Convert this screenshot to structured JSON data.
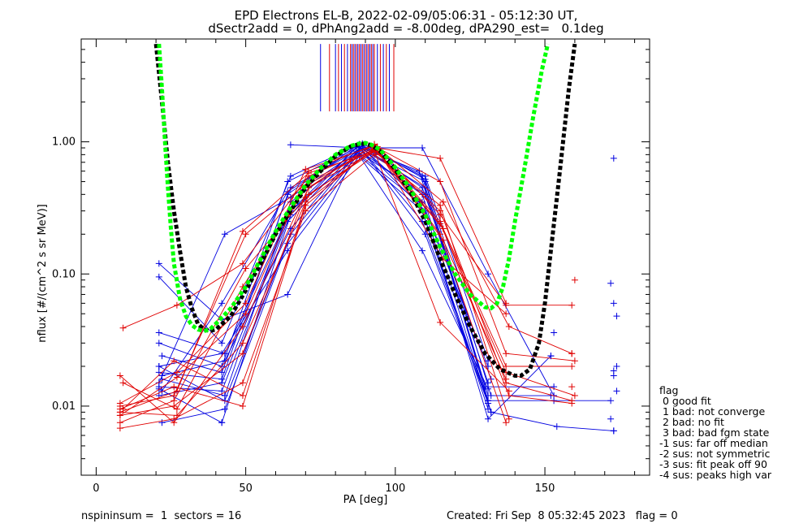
{
  "title_line1": "EPD Electrons EL-B, 2022-02-09/05:06:31 - 05:12:30 UT,",
  "title_line2": "dSectr2add = 0, dPhAng2add = -8.00deg, dPA290_est=   0.1deg",
  "footer_left": "nspininsum =  1  sectors = 16",
  "footer_right": "Created: Fri Sep  8 05:32:45 2023   flag = 0",
  "legend": {
    "title": "flag",
    "items": [
      " 0 good fit",
      " 1 bad: not converge",
      " 2 bad: no fit",
      " 3 bad: bad fgm state",
      "-1 sus: far off median",
      "-2 sus: not symmetric",
      "-3 sus: fit peak off 90",
      "-4 sus: peaks high var"
    ]
  },
  "colors": {
    "red": "#e00000",
    "blue": "#0000e0",
    "black": "#000000",
    "green": "#00ff00"
  },
  "chart_data": {
    "type": "line",
    "xlabel": "PA [deg]",
    "ylabel": "nflux [#/(cm^2 s sr MeV)]",
    "xlim": [
      -5,
      185
    ],
    "ylim": [
      0.003,
      6
    ],
    "yscale": "log",
    "xticks": [
      "0",
      "50",
      "100",
      "150"
    ],
    "yticks": [
      "0.01",
      "0.10",
      "1.00"
    ],
    "grid": false,
    "vertical_marks": {
      "x": [
        75,
        78,
        80,
        81,
        82,
        83,
        84,
        85,
        85.5,
        86,
        86.5,
        87,
        87.5,
        88,
        88.5,
        89,
        89.5,
        90,
        90.5,
        91,
        91.5,
        92,
        92.5,
        93,
        94,
        95,
        96,
        97,
        98,
        99.5
      ],
      "y_top": 5.5,
      "y_bottom": 1.7
    },
    "series": [
      {
        "color": "black",
        "style": "dashed-fit",
        "x": [
          20,
          22,
          24,
          26,
          28,
          30,
          32,
          34,
          36,
          38,
          40,
          45,
          50,
          55,
          60,
          65,
          70,
          75,
          80,
          85,
          88,
          90,
          92,
          95,
          100,
          105,
          110,
          115,
          120,
          125,
          130,
          135,
          140,
          142,
          145,
          148,
          150,
          152,
          155,
          158,
          160
        ],
        "y": [
          5.5,
          2.0,
          0.7,
          0.3,
          0.15,
          0.08,
          0.055,
          0.042,
          0.038,
          0.037,
          0.038,
          0.048,
          0.075,
          0.12,
          0.2,
          0.3,
          0.45,
          0.6,
          0.78,
          0.92,
          0.96,
          0.97,
          0.94,
          0.85,
          0.62,
          0.42,
          0.25,
          0.13,
          0.07,
          0.04,
          0.025,
          0.019,
          0.017,
          0.017,
          0.019,
          0.03,
          0.06,
          0.15,
          0.6,
          2.5,
          5.5
        ]
      },
      {
        "color": "green",
        "style": "dashed-fit",
        "x": [
          21,
          22,
          23,
          24,
          25,
          26,
          28,
          30,
          32,
          34,
          36,
          38,
          40,
          45,
          50,
          55,
          60,
          65,
          70,
          75,
          80,
          85,
          88,
          90,
          92,
          95,
          100,
          105,
          110,
          115,
          120,
          125,
          130,
          132,
          134,
          136,
          138,
          140,
          143,
          146,
          149,
          151
        ],
        "y": [
          5.5,
          2.5,
          1.0,
          0.45,
          0.22,
          0.12,
          0.065,
          0.048,
          0.041,
          0.038,
          0.037,
          0.038,
          0.042,
          0.055,
          0.08,
          0.13,
          0.21,
          0.32,
          0.47,
          0.63,
          0.8,
          0.93,
          0.97,
          0.98,
          0.95,
          0.87,
          0.64,
          0.44,
          0.28,
          0.16,
          0.1,
          0.07,
          0.056,
          0.055,
          0.06,
          0.08,
          0.13,
          0.25,
          0.6,
          1.5,
          3.5,
          5.5
        ]
      },
      {
        "color": "blue",
        "x": [
          21,
          42,
          65,
          88,
          109,
          131,
          153,
          172
        ],
        "y": [
          0.012,
          0.015,
          0.3,
          0.95,
          0.55,
          0.011,
          0.011,
          0.011
        ]
      },
      {
        "color": "blue",
        "x": [
          21,
          42,
          64,
          88,
          110,
          132,
          154,
          173
        ],
        "y": [
          0.014,
          0.013,
          0.25,
          0.9,
          0.5,
          0.009,
          0.007,
          0.0065
        ]
      },
      {
        "color": "blue",
        "x": [
          22,
          43,
          65,
          89,
          110,
          131,
          152
        ],
        "y": [
          0.016,
          0.012,
          0.35,
          0.88,
          0.45,
          0.012,
          0.012
        ]
      },
      {
        "color": "blue",
        "x": [
          21,
          42,
          64,
          87,
          108,
          130,
          153
        ],
        "y": [
          0.018,
          0.016,
          0.4,
          0.93,
          0.6,
          0.014,
          0.014
        ]
      },
      {
        "color": "blue",
        "x": [
          21,
          43,
          65,
          88,
          109,
          131
        ],
        "y": [
          0.02,
          0.011,
          0.2,
          0.86,
          0.4,
          0.0105
        ]
      },
      {
        "color": "blue",
        "x": [
          22,
          42,
          65,
          89,
          110,
          131,
          152
        ],
        "y": [
          0.024,
          0.018,
          0.45,
          0.9,
          0.3,
          0.008,
          0.024
        ]
      },
      {
        "color": "blue",
        "x": [
          21,
          42,
          64,
          88,
          109,
          131
        ],
        "y": [
          0.03,
          0.02,
          0.5,
          0.92,
          0.25,
          0.011
        ]
      },
      {
        "color": "blue",
        "x": [
          21,
          43,
          65,
          88,
          108,
          131
        ],
        "y": [
          0.036,
          0.025,
          0.3,
          0.8,
          0.35,
          0.0095
        ]
      },
      {
        "color": "blue",
        "x": [
          21,
          42,
          65,
          89,
          110,
          132
        ],
        "y": [
          0.095,
          0.03,
          0.55,
          0.97,
          0.52,
          0.012
        ]
      },
      {
        "color": "blue",
        "x": [
          21,
          42,
          64,
          87,
          109,
          131
        ],
        "y": [
          0.12,
          0.045,
          0.07,
          0.85,
          0.15,
          0.0135
        ]
      },
      {
        "color": "blue",
        "x": [
          22,
          43,
          64,
          88,
          110,
          131
        ],
        "y": [
          0.0075,
          0.0095,
          0.17,
          0.82,
          0.4,
          0.015
        ]
      },
      {
        "color": "blue",
        "x": [
          21,
          42,
          65,
          88,
          109,
          132
        ],
        "y": [
          0.0135,
          0.0075,
          0.28,
          0.96,
          0.45,
          0.016
        ]
      },
      {
        "color": "blue",
        "x": [
          22,
          42,
          64,
          88,
          110,
          131
        ],
        "y": [
          0.013,
          0.06,
          0.42,
          0.92,
          0.2,
          0.0105
        ]
      },
      {
        "color": "blue",
        "x": [
          21,
          43,
          65,
          89,
          109,
          131
        ],
        "y": [
          0.015,
          0.2,
          0.38,
          0.9,
          0.35,
          0.02
        ]
      },
      {
        "color": "blue",
        "x": [
          65,
          88,
          109,
          131,
          153
        ],
        "y": [
          0.95,
          0.9,
          0.9,
          0.1,
          0.012
        ]
      },
      {
        "color": "blue",
        "x": [
          21,
          42,
          64,
          88,
          109,
          132
        ],
        "y": [
          0.02,
          0.025,
          0.15,
          0.78,
          0.3,
          0.009
        ]
      },
      {
        "color": "blue",
        "x": [
          22,
          43,
          65,
          89,
          110,
          131
        ],
        "y": [
          0.017,
          0.022,
          0.22,
          0.94,
          0.55,
          0.022
        ]
      },
      {
        "color": "red",
        "x": [
          8,
          26,
          49,
          71,
          93,
          115,
          137,
          159
        ],
        "y": [
          0.0085,
          0.01,
          0.025,
          0.45,
          0.85,
          0.3,
          0.015,
          0.011
        ]
      },
      {
        "color": "red",
        "x": [
          8,
          27,
          49,
          70,
          93,
          115,
          138,
          159
        ],
        "y": [
          0.009,
          0.0085,
          0.03,
          0.35,
          0.9,
          0.25,
          0.012,
          0.0105
        ]
      },
      {
        "color": "red",
        "x": [
          8,
          26,
          50,
          71,
          93,
          116,
          137,
          159
        ],
        "y": [
          0.01,
          0.012,
          0.2,
          0.5,
          0.88,
          0.22,
          0.02,
          0.02
        ]
      },
      {
        "color": "red",
        "x": [
          9,
          27,
          49,
          71,
          94,
          115,
          137,
          159
        ],
        "y": [
          0.039,
          0.058,
          0.12,
          0.55,
          0.92,
          0.28,
          0.058,
          0.058
        ]
      },
      {
        "color": "red",
        "x": [
          8,
          26,
          49,
          70,
          93,
          115,
          138
        ],
        "y": [
          0.0068,
          0.008,
          0.015,
          0.3,
          0.8,
          0.33,
          0.008
        ]
      },
      {
        "color": "red",
        "x": [
          8,
          27,
          50,
          71,
          93,
          116,
          138,
          159
        ],
        "y": [
          0.0085,
          0.0165,
          0.05,
          0.6,
          0.95,
          0.35,
          0.04,
          0.025
        ]
      },
      {
        "color": "red",
        "x": [
          9,
          26,
          49,
          71,
          94,
          115,
          137
        ],
        "y": [
          0.0095,
          0.022,
          0.012,
          0.4,
          0.87,
          0.2,
          0.0075
        ]
      },
      {
        "color": "red",
        "x": [
          8,
          27,
          50,
          70,
          93,
          115,
          137,
          160
        ],
        "y": [
          0.0105,
          0.018,
          0.06,
          0.62,
          0.93,
          0.5,
          0.025,
          0.022
        ]
      },
      {
        "color": "red",
        "x": [
          8,
          26,
          49,
          71,
          93,
          116,
          137
        ],
        "y": [
          0.017,
          0.0075,
          0.04,
          0.45,
          0.96,
          0.13,
          0.05
        ]
      },
      {
        "color": "red",
        "x": [
          8,
          27,
          49,
          71,
          93,
          115,
          138
        ],
        "y": [
          0.009,
          0.013,
          0.21,
          0.58,
          0.85,
          0.043,
          0.013
        ]
      },
      {
        "color": "red",
        "x": [
          8,
          26,
          50,
          70,
          94,
          115,
          137
        ],
        "y": [
          0.0075,
          0.011,
          0.11,
          0.38,
          0.9,
          0.75,
          0.06
        ]
      },
      {
        "color": "red",
        "x": [
          9,
          27,
          49,
          71,
          93,
          115,
          137,
          160
        ],
        "y": [
          0.015,
          0.0095,
          0.08,
          0.48,
          0.88,
          0.24,
          0.018,
          0.012
        ]
      },
      {
        "color": "red",
        "x": [
          8,
          26,
          49,
          70,
          93,
          116,
          137
        ],
        "y": [
          0.0095,
          0.014,
          0.01,
          0.33,
          0.91,
          0.18,
          0.016
        ]
      }
    ],
    "extra_points": [
      {
        "color": "blue",
        "x": [
          173,
          172,
          174,
          173,
          174,
          173,
          172,
          174,
          173,
          173
        ],
        "y": [
          0.75,
          0.085,
          0.048,
          0.06,
          0.02,
          0.017,
          0.008,
          0.013,
          0.0065,
          0.0185
        ]
      },
      {
        "color": "blue",
        "x": [
          153,
          152
        ],
        "y": [
          0.036,
          0.024
        ]
      },
      {
        "color": "red",
        "x": [
          160,
          159,
          159
        ],
        "y": [
          0.09,
          0.025,
          0.014
        ]
      },
      {
        "color": "blue",
        "x": [
          42
        ],
        "y": [
          0.0075
        ]
      }
    ]
  }
}
